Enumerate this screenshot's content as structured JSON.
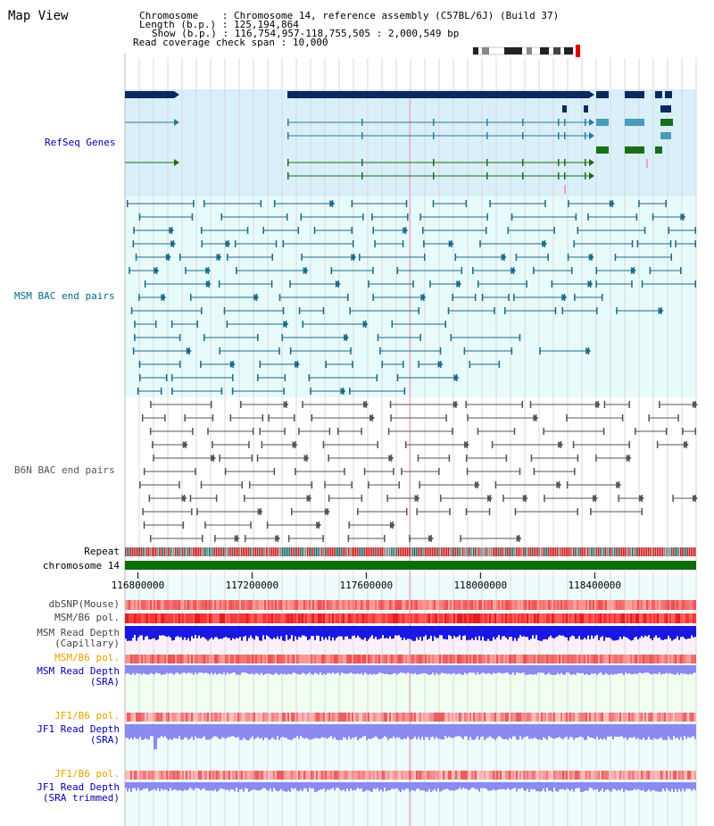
{
  "title": "Map View",
  "header": {
    "chromosome_label": "Chromosome    ",
    "chromosome_value": "Chromosome 14, reference assembly (C57BL/6J) (Build 37)",
    "length_label": "Length (b.p.)",
    "length_value": "125,194,864",
    "show_label": "Show (b.p.)",
    "show_value": "116,754,957-118,755,505 : 2,000,549 bp",
    "coverage_label": "Read coverage check span",
    "coverage_value": "10,000"
  },
  "tracks": {
    "refseq": "RefSeq Genes",
    "msm_bac": "MSM BAC end pairs",
    "b6n_bac": "B6N BAC end pairs",
    "repeat": "Repeat",
    "chromosome": "chromosome 14",
    "dbsnp": "dbSNP(Mouse)",
    "msm_pol": "MSM/B6 pol.",
    "msm_depth_cap_1": "MSM Read Depth",
    "msm_depth_cap_2": "(Capillary)",
    "msm_pol2": "MSM/B6 pol.",
    "msm_sra_1": "MSM Read Depth",
    "msm_sra_2": "(SRA)",
    "jf1_pol": "JF1/B6 pol.",
    "jf1_sra_1": "JF1 Read Depth",
    "jf1_sra_2": "(SRA)",
    "jf1_pol2": "JF1/B6 pol.",
    "jf1_trim_1": "JF1 Read Depth",
    "jf1_trim_2": "(SRA trimmed)"
  },
  "axis": {
    "ticks": [
      "116800000",
      "117200000",
      "117600000",
      "118000000",
      "118400000"
    ],
    "tick_values": [
      116800000,
      117200000,
      117600000,
      118000000,
      118400000
    ],
    "range": [
      116754957,
      118755505
    ]
  },
  "colors": {
    "refseq_bg": "#d9f0fa",
    "bac_bg": "#e8fbfb",
    "gene_dark": "#0a2a5e",
    "gene_blue": "#2a7a9a",
    "gene_green": "#1a6e1a",
    "msm_line": "#1a6a8a",
    "b6n_line": "#555555",
    "msm_label": "#006a8a",
    "b6n_label": "#555555",
    "refseq_label": "#0000aa",
    "orange_label": "#e8a000",
    "blue_label": "#0000aa",
    "chromosome": "#0a6e0a",
    "depth_dark": "#1818e0",
    "depth_light": "#8a8af0"
  }
}
